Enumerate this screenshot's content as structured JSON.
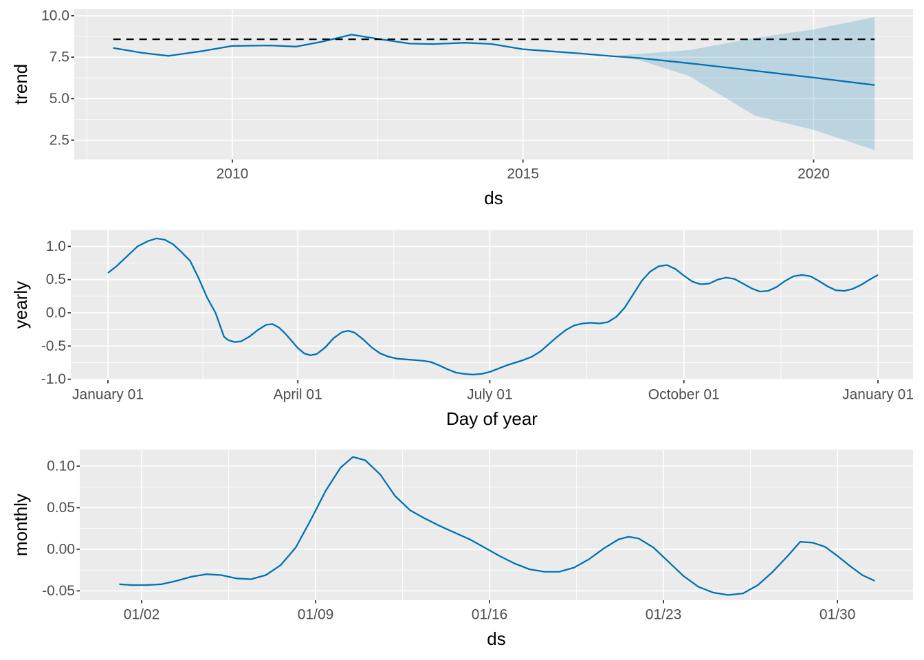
{
  "figure": {
    "description": "Prophet forecast components plot with trend, yearly and monthly panels",
    "background": "#FFFFFF"
  },
  "style": {
    "panel_bg": "#EBEBEB",
    "grid_major_color": "#FFFFFF",
    "grid_minor_color": "#FFFFFF",
    "line_color": "#0072B2",
    "ribbon_color": "#0072B2",
    "ribbon_opacity": 0.2,
    "dashed_line_color": "#000000",
    "tick_mark_color": "#333333",
    "tick_label_color": "#4D4D4D",
    "axis_title_color": "#000000"
  },
  "chart_data": [
    {
      "name": "trend",
      "type": "line",
      "xlabel": "ds",
      "ylabel": "trend",
      "x_range": [
        2007.28,
        2021.71
      ],
      "y_range": [
        1.33,
        10.41
      ],
      "grid": true,
      "x_ticks": {
        "values": [
          2010,
          2015,
          2020
        ],
        "labels": [
          "2010",
          "2015",
          "2020"
        ]
      },
      "y_ticks": {
        "values": [
          2.5,
          5.0,
          7.5,
          10.0
        ],
        "labels": [
          "2.5",
          "5.0",
          "7.5",
          "10.0"
        ]
      },
      "series": [
        {
          "name": "trend",
          "x": [
            2007.95,
            2008.45,
            2008.9,
            2009.45,
            2010.0,
            2010.65,
            2011.1,
            2011.55,
            2012.05,
            2012.55,
            2013.05,
            2013.45,
            2014.0,
            2014.45,
            2015.0,
            2016.0,
            2016.5,
            2017.0,
            2018.0,
            2019.0,
            2020.0,
            2021.05
          ],
          "y": [
            8.06,
            7.76,
            7.58,
            7.85,
            8.18,
            8.21,
            8.14,
            8.44,
            8.86,
            8.58,
            8.32,
            8.29,
            8.37,
            8.3,
            7.98,
            7.72,
            7.57,
            7.45,
            7.08,
            6.68,
            6.27,
            5.82
          ]
        }
      ],
      "hline": {
        "y": 8.58,
        "x_start": 2007.95,
        "x_end": 2021.05,
        "style": "dashed"
      },
      "ribbon": {
        "name": "uncertainty-interval",
        "x": [
          2016.5,
          2016.75,
          2017.0,
          2017.85,
          2019.0,
          2020.0,
          2021.05
        ],
        "upper": [
          7.57,
          7.63,
          7.7,
          7.92,
          8.67,
          9.17,
          9.92
        ],
        "lower": [
          7.57,
          7.46,
          7.32,
          6.38,
          3.96,
          3.12,
          1.9
        ]
      }
    },
    {
      "name": "yearly",
      "type": "line",
      "xlabel": "Day of year",
      "ylabel": "yearly",
      "x_range": [
        -16.6,
        382.6
      ],
      "y_range": [
        -1.014,
        1.2525
      ],
      "grid": true,
      "x_ticks": {
        "values": [
          1,
          91,
          182,
          274,
          366
        ],
        "labels": [
          "January 01",
          "April 01",
          "July 01",
          "October 01",
          "January 01"
        ]
      },
      "y_ticks": {
        "values": [
          -1.0,
          -0.5,
          0.0,
          0.5,
          1.0
        ],
        "labels": [
          "-1.0",
          "-0.5",
          "0.0",
          "0.5",
          "1.0"
        ]
      },
      "series": [
        {
          "name": "yearly-seasonality",
          "x": [
            1,
            5,
            10,
            15,
            20,
            24,
            28,
            32,
            36,
            40,
            44,
            48,
            52,
            56,
            58,
            61,
            64,
            68,
            72,
            76,
            79,
            82,
            85,
            88,
            91,
            94,
            97,
            100,
            104,
            108,
            112,
            115,
            118,
            122,
            126,
            130,
            134,
            138,
            142,
            146,
            150,
            154,
            158,
            162,
            166,
            170,
            174,
            178,
            182,
            186,
            190,
            194,
            198,
            202,
            206,
            210,
            214,
            218,
            222,
            226,
            230,
            234,
            238,
            242,
            246,
            250,
            254,
            258,
            262,
            266,
            270,
            274,
            278,
            282,
            286,
            290,
            294,
            298,
            302,
            306,
            310,
            314,
            318,
            322,
            326,
            330,
            334,
            338,
            342,
            346,
            350,
            354,
            358,
            362,
            366
          ],
          "y": [
            0.6,
            0.7,
            0.85,
            1.0,
            1.08,
            1.12,
            1.1,
            1.03,
            0.91,
            0.78,
            0.52,
            0.23,
            0.0,
            -0.36,
            -0.41,
            -0.44,
            -0.43,
            -0.36,
            -0.26,
            -0.18,
            -0.17,
            -0.22,
            -0.31,
            -0.42,
            -0.53,
            -0.61,
            -0.64,
            -0.62,
            -0.52,
            -0.38,
            -0.29,
            -0.27,
            -0.3,
            -0.4,
            -0.52,
            -0.61,
            -0.66,
            -0.69,
            -0.7,
            -0.71,
            -0.72,
            -0.74,
            -0.79,
            -0.85,
            -0.9,
            -0.92,
            -0.93,
            -0.92,
            -0.89,
            -0.84,
            -0.79,
            -0.75,
            -0.71,
            -0.66,
            -0.58,
            -0.47,
            -0.36,
            -0.26,
            -0.19,
            -0.16,
            -0.15,
            -0.16,
            -0.14,
            -0.06,
            0.08,
            0.28,
            0.48,
            0.62,
            0.7,
            0.72,
            0.66,
            0.56,
            0.47,
            0.43,
            0.44,
            0.5,
            0.53,
            0.51,
            0.44,
            0.37,
            0.32,
            0.33,
            0.39,
            0.48,
            0.55,
            0.57,
            0.55,
            0.48,
            0.4,
            0.34,
            0.33,
            0.36,
            0.42,
            0.5,
            0.57
          ]
        }
      ]
    },
    {
      "name": "monthly",
      "type": "line",
      "xlabel": "ds",
      "ylabel": "monthly",
      "x_range": [
        -0.49,
        33.04
      ],
      "y_range": [
        -0.0612,
        0.1198
      ],
      "grid": true,
      "x_ticks": {
        "values": [
          2,
          9,
          16,
          23,
          30
        ],
        "labels": [
          "01/02",
          "01/09",
          "01/16",
          "01/23",
          "01/30"
        ]
      },
      "y_ticks": {
        "values": [
          -0.05,
          0.0,
          0.05,
          0.1
        ],
        "labels": [
          "-0.05",
          "0.00",
          "0.05",
          "0.10"
        ]
      },
      "series": [
        {
          "name": "monthly-seasonality",
          "x": [
            1.1,
            1.6,
            2.2,
            2.8,
            3.4,
            4.0,
            4.6,
            5.2,
            5.8,
            6.4,
            7.0,
            7.6,
            8.2,
            8.8,
            9.4,
            10.0,
            10.5,
            11.0,
            11.6,
            12.2,
            12.8,
            13.4,
            14.0,
            14.6,
            15.2,
            15.8,
            16.4,
            17.0,
            17.6,
            18.2,
            18.8,
            19.4,
            20.0,
            20.6,
            21.2,
            21.6,
            22.0,
            22.6,
            23.2,
            23.8,
            24.4,
            25.0,
            25.6,
            26.2,
            26.8,
            27.4,
            28.0,
            28.5,
            29.0,
            29.5,
            30.0,
            30.5,
            31.0,
            31.5
          ],
          "y": [
            -0.042,
            -0.043,
            -0.043,
            -0.042,
            -0.038,
            -0.033,
            -0.03,
            -0.031,
            -0.035,
            -0.036,
            -0.031,
            -0.019,
            0.002,
            0.035,
            0.07,
            0.098,
            0.111,
            0.107,
            0.09,
            0.064,
            0.047,
            0.037,
            0.028,
            0.02,
            0.012,
            0.002,
            -0.008,
            -0.017,
            -0.024,
            -0.027,
            -0.027,
            -0.022,
            -0.012,
            0.001,
            0.012,
            0.015,
            0.013,
            0.002,
            -0.015,
            -0.032,
            -0.045,
            -0.052,
            -0.055,
            -0.053,
            -0.043,
            -0.027,
            -0.008,
            0.009,
            0.008,
            0.003,
            -0.008,
            -0.02,
            -0.031,
            -0.038
          ]
        }
      ]
    }
  ]
}
